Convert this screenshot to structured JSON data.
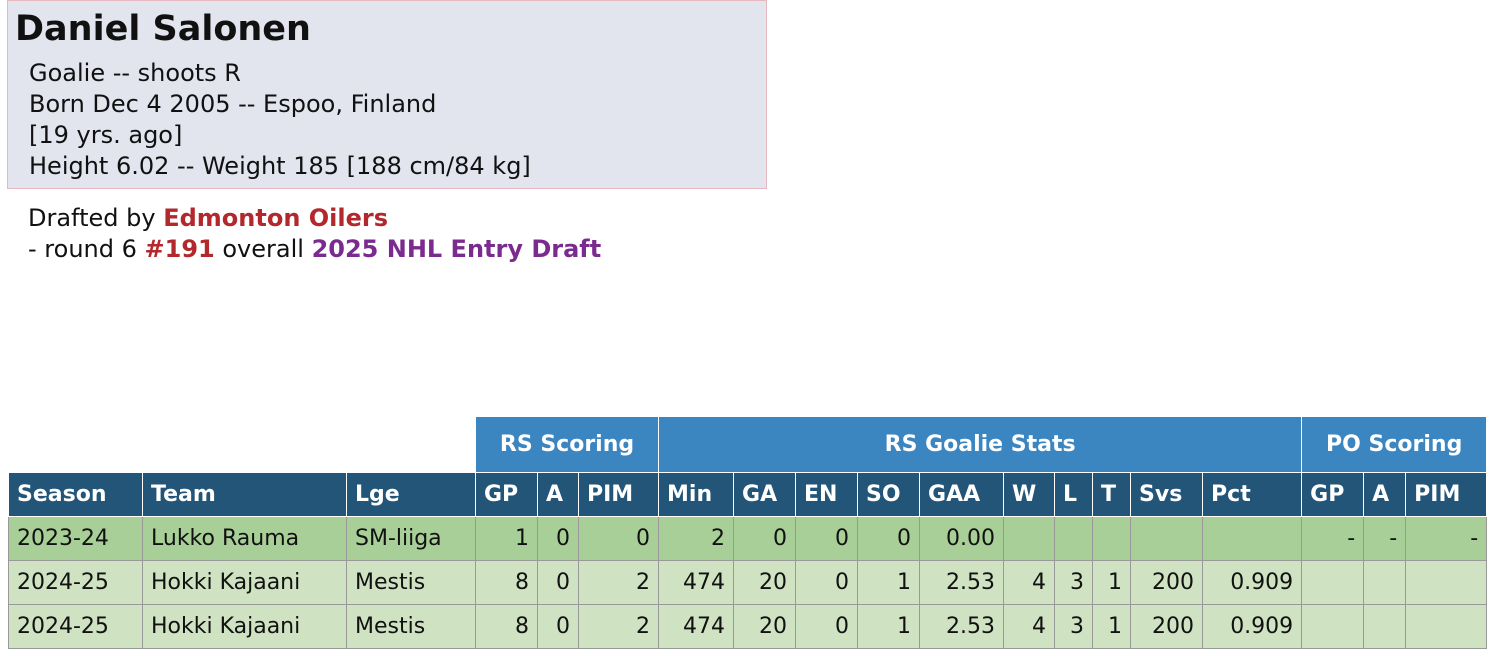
{
  "header": {
    "name": "Daniel Salonen",
    "lines": [
      "Goalie -- shoots R",
      "Born Dec 4 2005 -- Espoo, Finland",
      "[19 yrs. ago]",
      "Height 6.02 -- Weight 185 [188 cm/84 kg]"
    ]
  },
  "draft": {
    "prefix": "Drafted by",
    "team": "Edmonton Oilers",
    "round": "- round 6",
    "pick": "#191",
    "overall": "overall",
    "event": "2025 NHL Entry Draft"
  },
  "table": {
    "groups": [
      "RS Scoring",
      "RS Goalie Stats",
      "PO Scoring"
    ],
    "columns": [
      "Season",
      "Team",
      "Lge",
      "GP",
      "A",
      "PIM",
      "Min",
      "GA",
      "EN",
      "SO",
      "GAA",
      "W",
      "L",
      "T",
      "Svs",
      "Pct",
      "GP",
      "A",
      "PIM"
    ],
    "rows": [
      [
        "2023-24",
        "Lukko Rauma",
        "SM-liiga",
        1,
        0,
        0,
        2,
        0,
        0,
        0,
        "0.00",
        null,
        null,
        null,
        null,
        null,
        "-",
        "-",
        "-"
      ],
      [
        "2024-25",
        "Hokki Kajaani",
        "Mestis",
        8,
        0,
        2,
        474,
        20,
        0,
        1,
        2.53,
        4,
        3,
        1,
        200,
        0.909,
        null,
        null,
        null
      ],
      [
        "2024-25",
        "Hokki Kajaani",
        "Mestis",
        8,
        0,
        2,
        474,
        20,
        0,
        1,
        2.53,
        4,
        3,
        1,
        200,
        0.909,
        null,
        null,
        null
      ]
    ]
  }
}
